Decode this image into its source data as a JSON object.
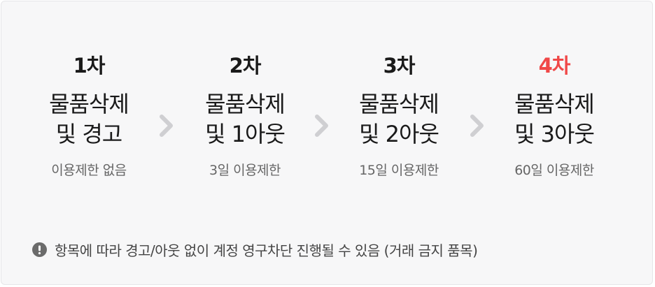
{
  "steps": [
    {
      "title": "1차",
      "action_line1": "물품삭제",
      "action_line2": "및 경고",
      "limit": "이용제한 없음",
      "highlight": false
    },
    {
      "title": "2차",
      "action_line1": "물품삭제",
      "action_line2": "및 1아웃",
      "limit": "3일 이용제한",
      "highlight": false
    },
    {
      "title": "3차",
      "action_line1": "물품삭제",
      "action_line2": "및 2아웃",
      "limit": "15일 이용제한",
      "highlight": false
    },
    {
      "title": "4차",
      "action_line1": "물품삭제",
      "action_line2": "및 3아웃",
      "limit": "60일 이용제한",
      "highlight": true
    }
  ],
  "notice": {
    "icon": "exclamation-circle-icon",
    "text": "항목에 따라 경고/아웃 없이 계정 영구차단 진행될 수 있음 (거래 금지 품목)"
  },
  "colors": {
    "highlight": "#f04848",
    "chevron": "#cfcfd2",
    "notice_icon": "#6b6b6b"
  }
}
